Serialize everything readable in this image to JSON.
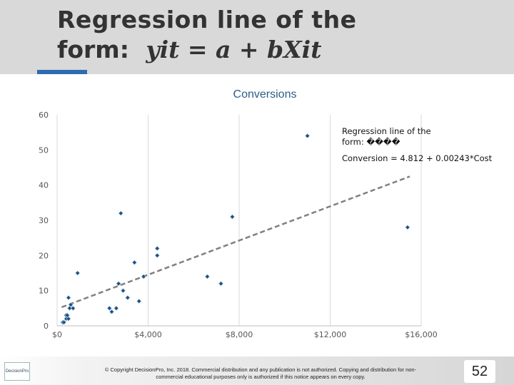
{
  "slide": {
    "title_line1": "Regression line of the",
    "title_line2_text": "form:",
    "title_line2_formula": "yit = a + bXit",
    "copyright": "© Copyright DecisionPro, Inc. 2018. Commercial distribution and any publication is not authorized. Copying and distribution for non-commercial educational purposes only is authorized if this notice appears on every copy.",
    "page_number": "52",
    "logo_text": "DecisionPro"
  },
  "chart_data": {
    "type": "scatter",
    "title": "Conversions",
    "xlabel": "",
    "ylabel": "",
    "xlim": [
      0,
      16000
    ],
    "ylim": [
      0,
      60
    ],
    "x_ticks": [
      "$0",
      "$4,000",
      "$8,000",
      "$12,000",
      "$16,000"
    ],
    "y_ticks": [
      "0",
      "10",
      "20",
      "30",
      "40",
      "50",
      "60"
    ],
    "grid": "vertical",
    "colors": {
      "points": "#1f4e79",
      "trendline": "#808080",
      "title": "#2e5c8a"
    },
    "annotation": {
      "line1": "Regression line of the",
      "line2": "form: ����",
      "equation": "Conversion = 4.812 + 0.00243*Cost"
    },
    "trendline": {
      "intercept": 4.812,
      "slope": 0.00243,
      "x_range": [
        200,
        15500
      ]
    },
    "series": [
      {
        "x": [
          250,
          300,
          400,
          400,
          450,
          500,
          500,
          550,
          600,
          700,
          900,
          2300,
          2400,
          2600,
          2700,
          2800,
          2900,
          3100,
          3400,
          3600,
          3800,
          4400,
          4400,
          6600,
          7200,
          7700,
          11000,
          15400
        ],
        "y": [
          1,
          1,
          2,
          3,
          3,
          8,
          2,
          5,
          6,
          5,
          15,
          5,
          4,
          5,
          12,
          32,
          10,
          8,
          18,
          7,
          14,
          22,
          20,
          14,
          12,
          31,
          54,
          28
        ]
      }
    ]
  }
}
